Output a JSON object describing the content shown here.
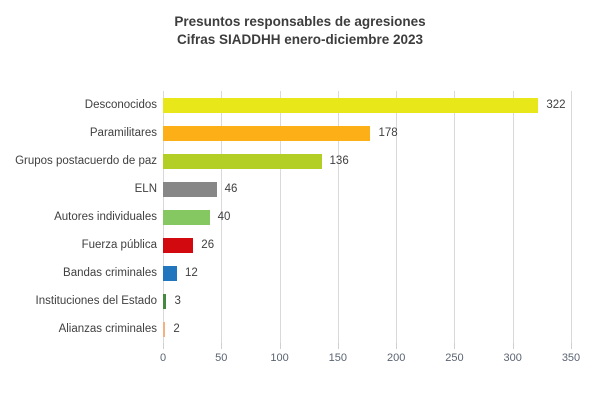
{
  "chart_data": {
    "type": "bar",
    "orientation": "horizontal",
    "title_line1": "Presuntos responsables de agresiones",
    "title_line2": "Cifras SIADDHH enero-diciembre 2023",
    "categories": [
      "Desconocidos",
      "Paramilitares",
      "Grupos postacuerdo de paz",
      "ELN",
      "Autores individuales",
      "Fuerza pública",
      "Bandas criminales",
      "Instituciones del Estado",
      "Alianzas criminales"
    ],
    "values": [
      322,
      178,
      136,
      46,
      40,
      26,
      12,
      3,
      2
    ],
    "bar_colors": [
      "#e7e719",
      "#fcaf17",
      "#b3cf25",
      "#878787",
      "#85c861",
      "#d20a10",
      "#2276bd",
      "#44893f",
      "#f3b183"
    ],
    "value_labels": [
      "322",
      "178",
      "136",
      "46",
      "40",
      "26",
      "12",
      "3",
      "2"
    ],
    "xlabel": "",
    "ylabel": "",
    "xlim": [
      0,
      350
    ],
    "xticks": [
      0,
      50,
      100,
      150,
      200,
      250,
      300,
      350
    ],
    "grid": true,
    "legend": "none",
    "colors": {
      "title_text": "#3d3d3d",
      "category_text": "#404040",
      "value_text": "#404040",
      "axis_tick_text": "#5a6372",
      "gridline": "#d9d9d9",
      "background": "#ffffff"
    }
  }
}
